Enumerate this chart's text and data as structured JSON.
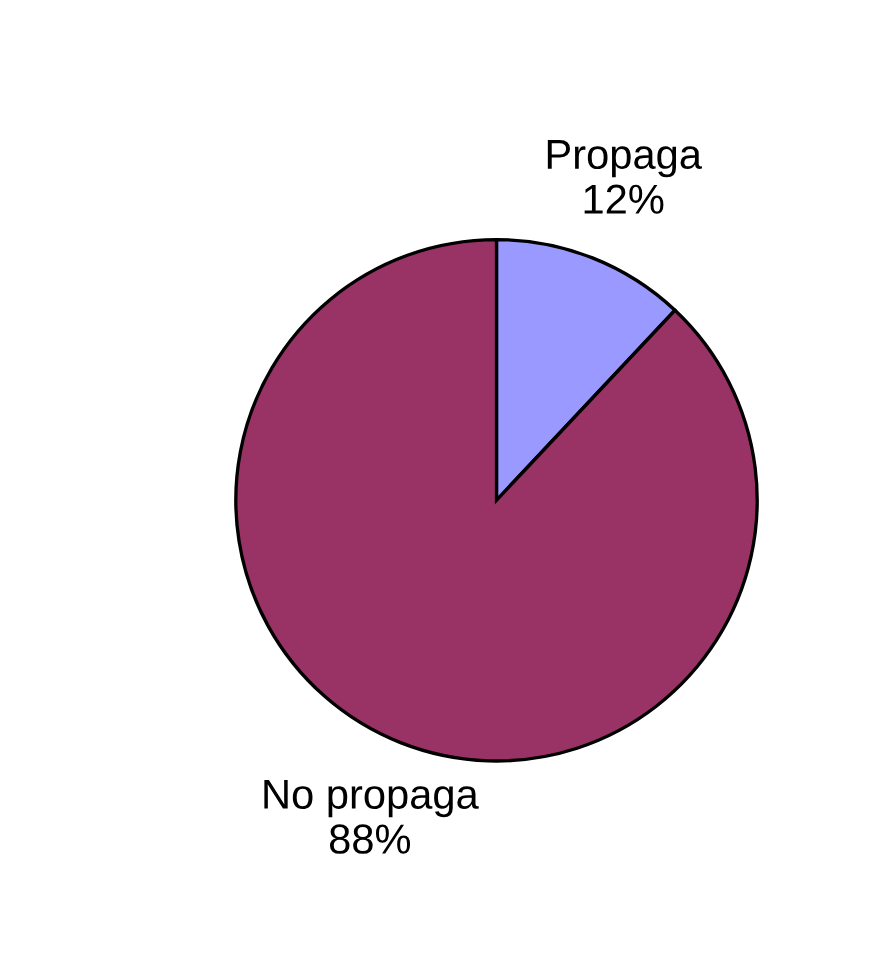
{
  "chart_data": {
    "type": "pie",
    "categories": [
      "Propaga",
      "No propaga"
    ],
    "values": [
      12,
      88
    ],
    "value_labels": [
      "12%",
      "88%"
    ],
    "colors": [
      "#9999ff",
      "#993366"
    ]
  }
}
